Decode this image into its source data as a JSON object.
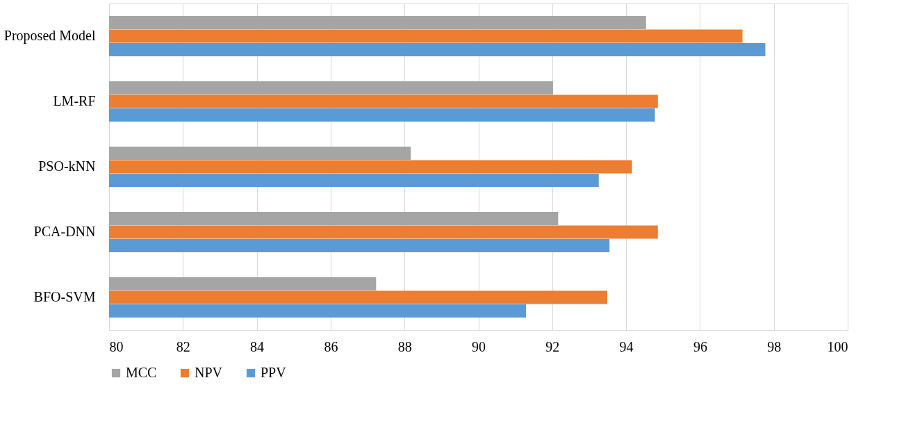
{
  "chart_data": {
    "type": "bar",
    "orientation": "horizontal",
    "categories": [
      "Proposed Model",
      "LM-RF",
      "PSO-kNN",
      "PCA-DNN",
      "BFO-SVM"
    ],
    "series": [
      {
        "name": "MCC",
        "color": "#a5a5a5",
        "values": [
          94.54,
          92.02,
          88.17,
          92.16,
          87.23
        ]
      },
      {
        "name": "NPV",
        "color": "#ed7d31",
        "values": [
          97.15,
          94.86,
          94.16,
          94.86,
          93.49
        ]
      },
      {
        "name": "PPV",
        "color": "#5b9bd5",
        "values": [
          97.77,
          94.78,
          93.26,
          93.55,
          91.29
        ]
      }
    ],
    "xlim": [
      80,
      100
    ],
    "xticks": [
      80,
      82,
      84,
      86,
      88,
      90,
      92,
      94,
      96,
      98,
      100
    ],
    "grid": "x",
    "legend": "bottom"
  }
}
